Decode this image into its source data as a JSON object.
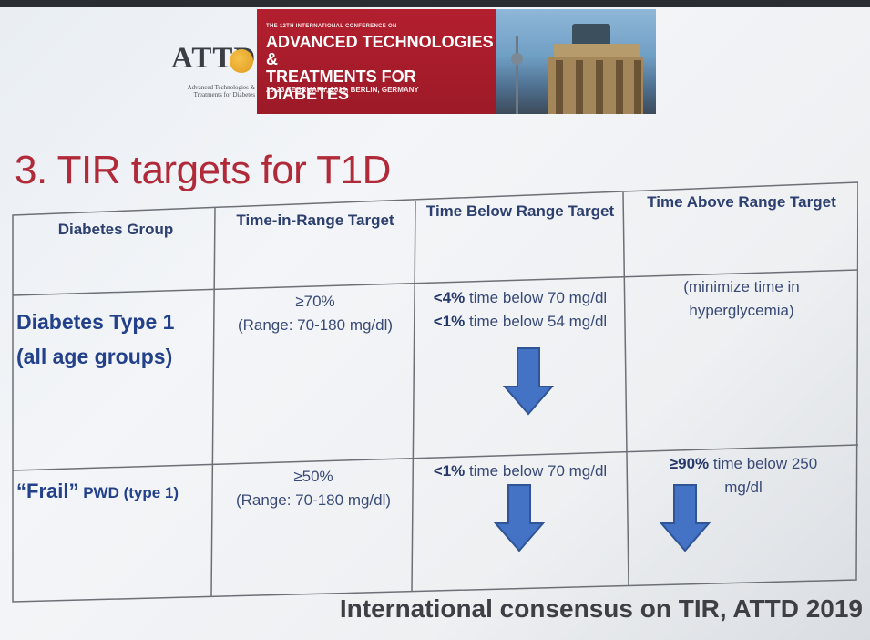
{
  "banner": {
    "logo_text": "ATTD",
    "logo_sub": "Advanced Technologies & Treatments for Diabetes",
    "conference_small": "THE 12TH INTERNATIONAL CONFERENCE ON",
    "conference_title_1": "ADVANCED TECHNOLOGIES &",
    "conference_title_2": "TREATMENTS FOR DIABETES",
    "conference_date": "20-23 FEBRUARY, 2019, BERLIN, GERMANY"
  },
  "slide": {
    "title": "3. TIR targets for T1D",
    "footer": "International consensus on TIR, ATTD 2019"
  },
  "table": {
    "headers": [
      "Diabetes Group",
      "Time-in-Range Target",
      "Time Below Range Target",
      "Time Above Range Target"
    ],
    "rows": [
      {
        "group_line1": "Diabetes Type 1",
        "group_line2": "(all age groups)",
        "tir_main": "≥70%",
        "tir_range": "(Range: 70-180 mg/dl)",
        "tbr_1_bold": "<4%",
        "tbr_1_rest": " time below 70 mg/dl",
        "tbr_2_bold": "<1%",
        "tbr_2_rest": " time below 54 mg/dl",
        "tar_line1": "(minimize time in",
        "tar_line2": "hyperglycemia)"
      },
      {
        "group_quote_open": "“",
        "group_frail": "Frail",
        "group_quote_close": "”",
        "group_rest": " PWD (type 1)",
        "tir_main": "≥50%",
        "tir_range": "(Range: 70-180 mg/dl)",
        "tbr_1_bold": "<1%",
        "tbr_1_rest": " time below 70 mg/dl",
        "tar_1_bold": "≥90%",
        "tar_1_rest": " time below 250",
        "tar_line2": "mg/dl"
      }
    ]
  },
  "colors": {
    "title": "#b12a3a",
    "header_text": "#2c3f6f",
    "arrow": "#4472c4",
    "banner_red": "#a81d2b"
  },
  "icons": [
    "down-arrow-icon"
  ]
}
